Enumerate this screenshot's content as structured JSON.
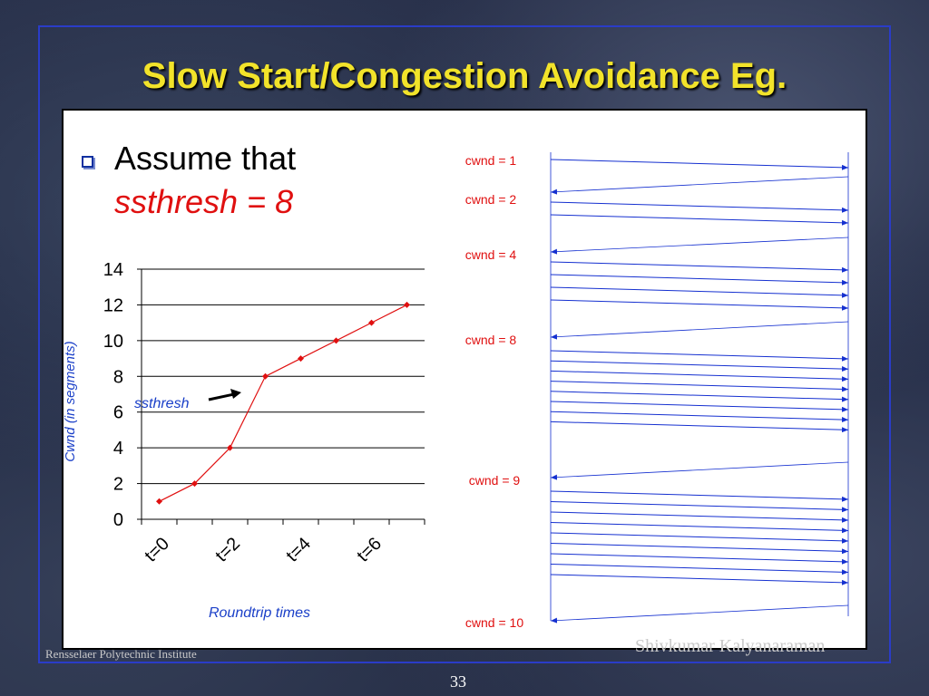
{
  "slide": {
    "title": "Slow Start/Congestion Avoidance Eg.",
    "bullet_text": "Assume that",
    "bullet_emphasis": "ssthresh = 8",
    "footer_left": "Rensselaer Polytechnic Institute",
    "footer_right": "Shivkumar Kalyanaraman",
    "page_number": "33"
  },
  "colors": {
    "title": "#f2e32a",
    "frame": "#2a3cc8",
    "series": "#e01010",
    "axis_label": "#1a3fc8",
    "arrow": "#1530d0",
    "cwnd_label": "#e01010"
  },
  "chart_data": [
    {
      "type": "line",
      "title": "",
      "xlabel": "Roundtrip times",
      "ylabel": "Cwnd (in segments)",
      "ylim": [
        0,
        14
      ],
      "yticks": [
        0,
        2,
        4,
        6,
        8,
        10,
        12,
        14
      ],
      "xtick_labels": [
        "t=0",
        "t=2",
        "t=4",
        "t=6"
      ],
      "grid": true,
      "x": [
        0,
        1,
        2,
        3,
        4,
        5,
        6,
        7
      ],
      "values": [
        1,
        2,
        4,
        8,
        9,
        10,
        11,
        12
      ],
      "annotation": {
        "text": "ssthresh",
        "points_to_y": 8
      }
    },
    {
      "type": "diagram",
      "title": "",
      "rounds": [
        {
          "label": "cwnd = 1",
          "cwnd": 1
        },
        {
          "label": "cwnd = 2",
          "cwnd": 2
        },
        {
          "label": "cwnd = 4",
          "cwnd": 4
        },
        {
          "label": "cwnd = 8",
          "cwnd": 8
        },
        {
          "label": "cwnd = 9",
          "cwnd": 9
        },
        {
          "label": "cwnd = 10",
          "cwnd": 10
        }
      ]
    }
  ]
}
